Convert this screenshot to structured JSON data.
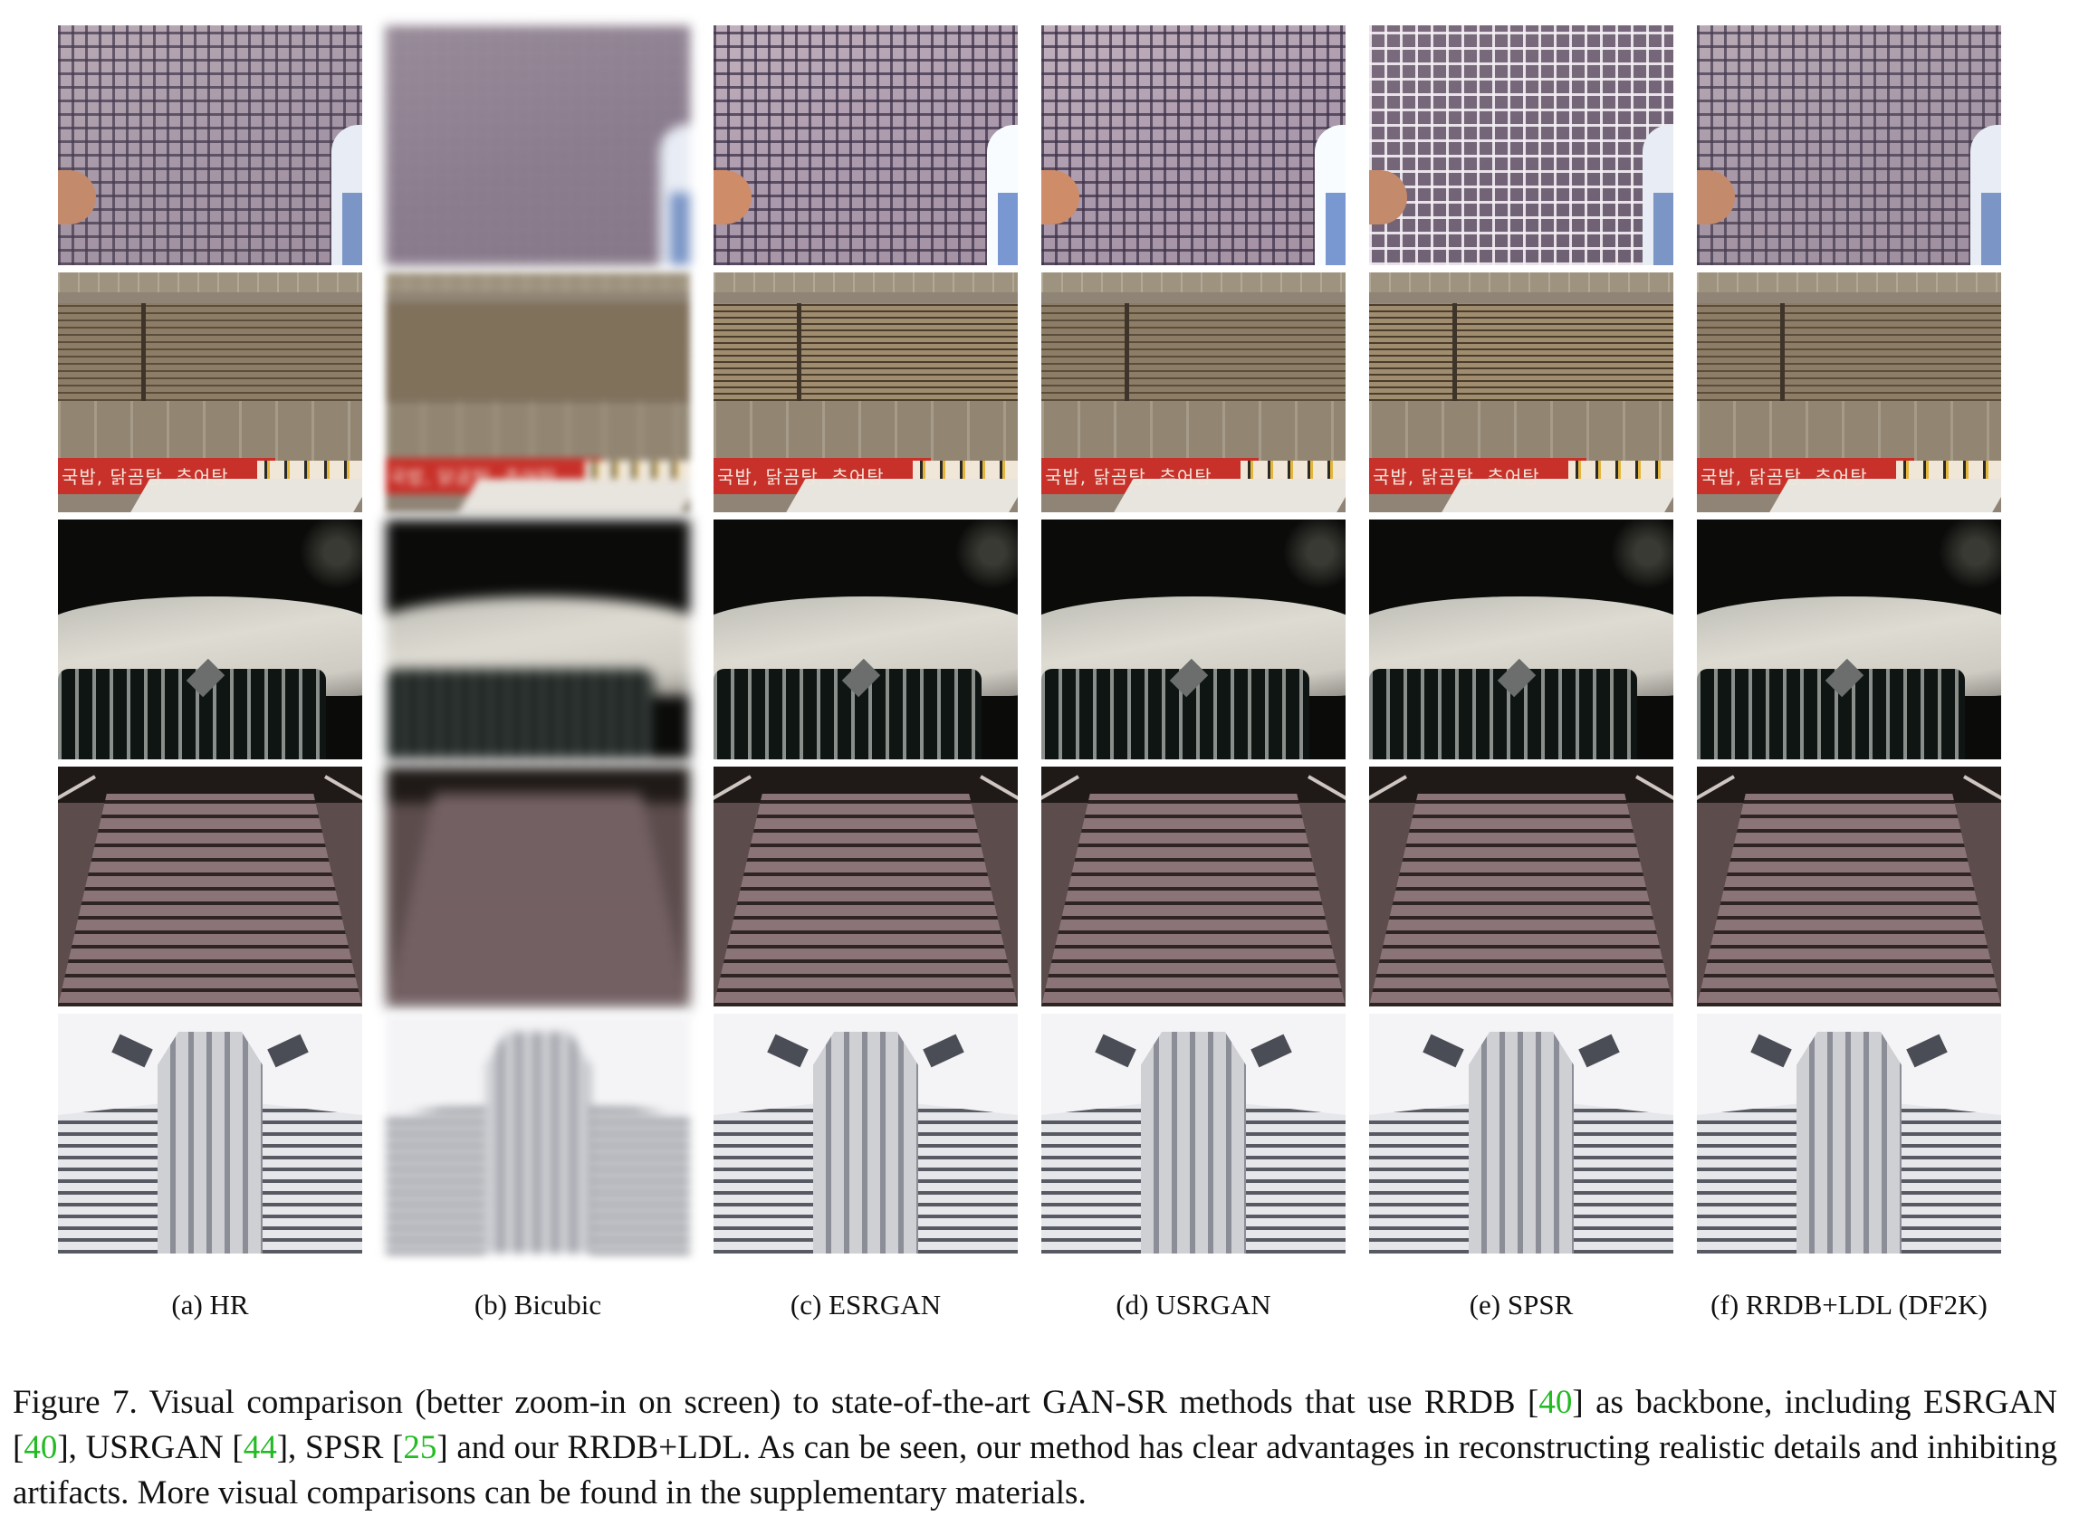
{
  "figure": {
    "labels": [
      "(a) HR",
      "(b) Bicubic",
      "(c) ESRGAN",
      "(d) USRGAN",
      "(e) SPSR",
      "(f) RRDB+LDL (DF2K)"
    ],
    "banner_text": "국밥, 닭곰탕, 추어탕",
    "caption": {
      "part1": "Figure 7. Visual comparison (better zoom-in on screen) to state-of-the-art GAN-SR methods that use RRDB [",
      "ref1": "40",
      "part2": "] as backbone, including ESRGAN [",
      "ref2": "40",
      "part3": "], USRGAN [",
      "ref3": "44",
      "part4": "], SPSR [",
      "ref4": "25",
      "part5": "] and our RRDB+LDL. As can be seen, our method has clear advantages in reconstructing realistic details and inhibiting artifacts. More visual comparisons can be found in the supplementary materials."
    },
    "colors": {
      "citation": "#22bb22",
      "text": "#111111"
    }
  }
}
